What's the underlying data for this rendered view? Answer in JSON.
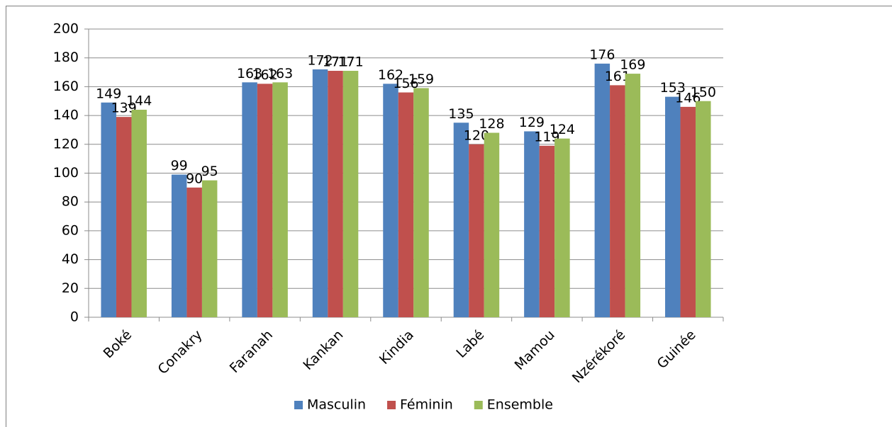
{
  "chart_data": {
    "type": "bar",
    "categories": [
      "Boké",
      "Conakry",
      "Faranah",
      "Kankan",
      "Kindia",
      "Labé",
      "Mamou",
      "Nzérékoré",
      "Guinée"
    ],
    "series": [
      {
        "name": "Masculin",
        "color": "#4f81bd",
        "values": [
          149,
          99,
          163,
          172,
          162,
          135,
          129,
          176,
          153
        ]
      },
      {
        "name": "Féminin",
        "color": "#c0504d",
        "values": [
          139,
          90,
          162,
          171,
          156,
          120,
          119,
          161,
          146
        ]
      },
      {
        "name": "Ensemble",
        "color": "#9bbb59",
        "values": [
          144,
          95,
          163,
          171,
          159,
          128,
          124,
          169,
          150
        ]
      }
    ],
    "ylim": [
      0,
      200
    ],
    "yticks": [
      0,
      20,
      40,
      60,
      80,
      100,
      120,
      140,
      160,
      180,
      200
    ],
    "grid": true,
    "legend": "bottom"
  }
}
